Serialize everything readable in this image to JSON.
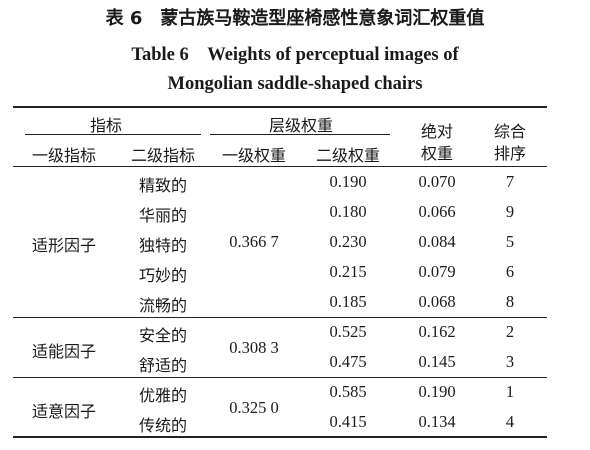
{
  "caption": {
    "cn": "表 6　蒙古族马鞍造型座椅感性意象词汇权重值",
    "en_line1": "Table 6　Weights of perceptual images of",
    "en_line2": "Mongolian saddle-shaped chairs"
  },
  "header": {
    "indicator": "指标",
    "first_level": "一级指标",
    "second_level": "二级指标",
    "hier_weight": "层级权重",
    "first_weight": "一级权重",
    "second_weight": "二级权重",
    "abs_weight_1": "绝对",
    "abs_weight_2": "权重",
    "rank_1": "综合",
    "rank_2": "排序"
  },
  "groups": [
    {
      "factor": "适形因子",
      "weight": "0.366 7",
      "rows": [
        {
          "term": "精致的",
          "second": "0.190",
          "absolute": "0.070",
          "rank": "7"
        },
        {
          "term": "华丽的",
          "second": "0.180",
          "absolute": "0.066",
          "rank": "9"
        },
        {
          "term": "独特的",
          "second": "0.230",
          "absolute": "0.084",
          "rank": "5"
        },
        {
          "term": "巧妙的",
          "second": "0.215",
          "absolute": "0.079",
          "rank": "6"
        },
        {
          "term": "流畅的",
          "second": "0.185",
          "absolute": "0.068",
          "rank": "8"
        }
      ]
    },
    {
      "factor": "适能因子",
      "weight": "0.308 3",
      "rows": [
        {
          "term": "安全的",
          "second": "0.525",
          "absolute": "0.162",
          "rank": "2"
        },
        {
          "term": "舒适的",
          "second": "0.475",
          "absolute": "0.145",
          "rank": "3"
        }
      ]
    },
    {
      "factor": "适意因子",
      "weight": "0.325 0",
      "rows": [
        {
          "term": "优雅的",
          "second": "0.585",
          "absolute": "0.190",
          "rank": "1"
        },
        {
          "term": "传统的",
          "second": "0.415",
          "absolute": "0.134",
          "rank": "4"
        }
      ]
    }
  ]
}
